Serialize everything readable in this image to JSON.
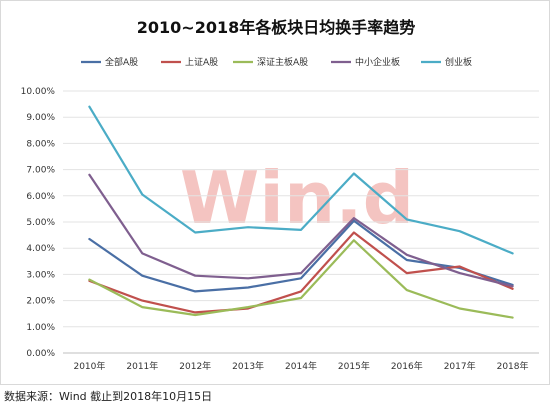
{
  "chart_data": {
    "type": "line",
    "title": "2010~2018年各板块日均换手率趋势",
    "categories": [
      "2010年",
      "2011年",
      "2012年",
      "2013年",
      "2014年",
      "2015年",
      "2016年",
      "2017年",
      "2018年"
    ],
    "ylim": [
      0,
      10
    ],
    "yticks": [
      "0.00%",
      "1.00%",
      "2.00%",
      "3.00%",
      "4.00%",
      "5.00%",
      "6.00%",
      "7.00%",
      "8.00%",
      "9.00%",
      "10.00%"
    ],
    "legend_position": "top",
    "grid": "horizontal",
    "series": [
      {
        "name": "全部A股",
        "color": "#4a6fa5",
        "values": [
          4.35,
          2.95,
          2.35,
          2.5,
          2.85,
          5.05,
          3.55,
          3.25,
          2.6
        ]
      },
      {
        "name": "上证A股",
        "color": "#c0504d",
        "values": [
          2.75,
          2.0,
          1.55,
          1.7,
          2.35,
          4.6,
          3.05,
          3.3,
          2.45
        ]
      },
      {
        "name": "深证主板A股",
        "color": "#9bbb59",
        "values": [
          2.8,
          1.75,
          1.45,
          1.75,
          2.1,
          4.3,
          2.4,
          1.7,
          1.35
        ]
      },
      {
        "name": "中小企业板",
        "color": "#7f5f8f",
        "values": [
          6.8,
          3.8,
          2.95,
          2.85,
          3.05,
          5.15,
          3.75,
          3.05,
          2.55
        ]
      },
      {
        "name": "创业板",
        "color": "#4bacc6",
        "values": [
          9.4,
          6.05,
          4.6,
          4.8,
          4.7,
          6.85,
          5.1,
          4.65,
          3.8
        ]
      }
    ]
  },
  "watermark": "Win.d",
  "source_note": "数据来源：Wind  截止到2018年10月15日"
}
